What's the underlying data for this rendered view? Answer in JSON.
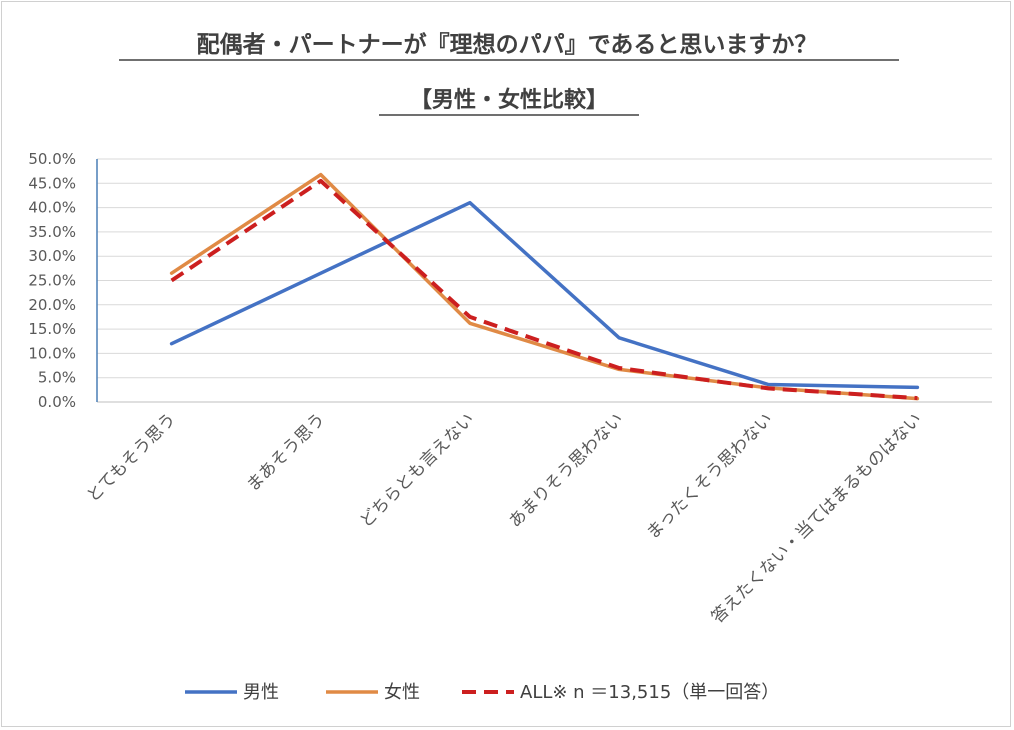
{
  "chart_data": {
    "type": "line",
    "title": "配偶者・パートナーが『理想のパパ』であると思いますか？",
    "subtitle": "【男性・女性比較】",
    "categories": [
      "とてもそう思う",
      "まあそう思う",
      "どちらとも言えない",
      "あまりそう思わない",
      "まったくそう思わない",
      "答えたくない・当てはまるものはない"
    ],
    "yticks": [
      "0.0%",
      "5.0%",
      "10.0%",
      "15.0%",
      "20.0%",
      "25.0%",
      "30.0%",
      "35.0%",
      "40.0%",
      "45.0%",
      "50.0%"
    ],
    "ylim": [
      0,
      50
    ],
    "series": [
      {
        "name": "男性",
        "color": "#4472c4",
        "dash": false,
        "values": [
          12.0,
          26.5,
          41.0,
          13.2,
          3.6,
          3.0
        ]
      },
      {
        "name": "女性",
        "color": "#e08a45",
        "dash": false,
        "values": [
          26.5,
          46.8,
          16.2,
          6.7,
          2.9,
          0.7
        ]
      },
      {
        "name": "ALL※ n ＝13,515（単一回答）",
        "color": "#cc1f1f",
        "dash": true,
        "values": [
          25.0,
          45.5,
          17.5,
          7.0,
          2.8,
          0.8
        ]
      }
    ]
  }
}
